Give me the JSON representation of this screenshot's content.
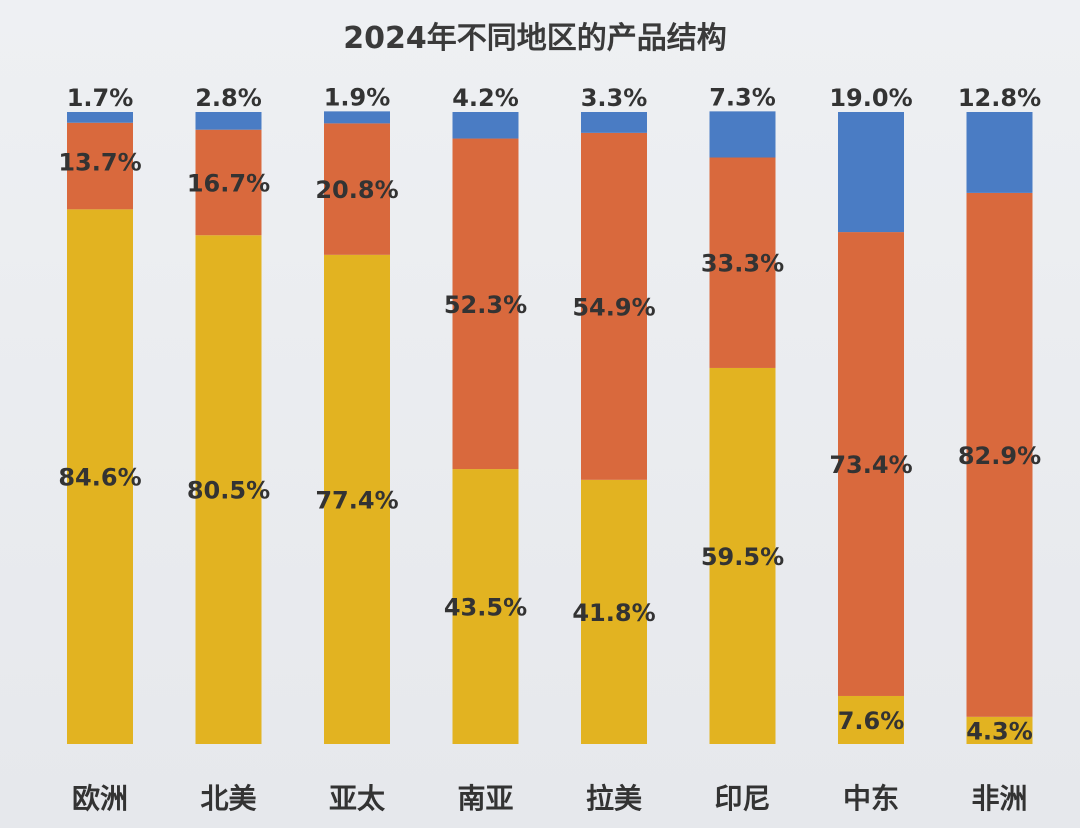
{
  "chart_data": {
    "type": "bar",
    "stacked": true,
    "title": "2024年不同地区的产品结构",
    "categories": [
      "欧洲",
      "北美",
      "亚太",
      "南亚",
      "拉美",
      "印尼",
      "中东",
      "非洲"
    ],
    "series": [
      {
        "color": "#e2b321",
        "values": [
          84.6,
          80.5,
          77.4,
          43.5,
          41.8,
          59.5,
          7.6,
          4.3
        ]
      },
      {
        "color": "#d9693d",
        "values": [
          13.7,
          16.7,
          20.8,
          52.3,
          54.9,
          33.3,
          73.4,
          82.9
        ]
      },
      {
        "color": "#4a7cc4",
        "values": [
          1.7,
          2.8,
          1.9,
          4.2,
          3.3,
          7.3,
          19.0,
          12.8
        ]
      }
    ],
    "data_labels": {
      "bottom": [
        "84.6%",
        "80.5%",
        "77.4%",
        "43.5%",
        "41.8%",
        "59.5%",
        "7.6%",
        "4.3%"
      ],
      "middle": [
        "13.7%",
        "16.7%",
        "20.8%",
        "52.3%",
        "54.9%",
        "33.3%",
        "73.4%",
        "82.9%"
      ],
      "top": [
        "1.7%",
        "2.8%",
        "1.9%",
        "4.2%",
        "3.3%",
        "7.3%",
        "19.0%",
        "12.8%"
      ]
    },
    "ylim": [
      0,
      100
    ],
    "grid": false,
    "legend": "none"
  }
}
